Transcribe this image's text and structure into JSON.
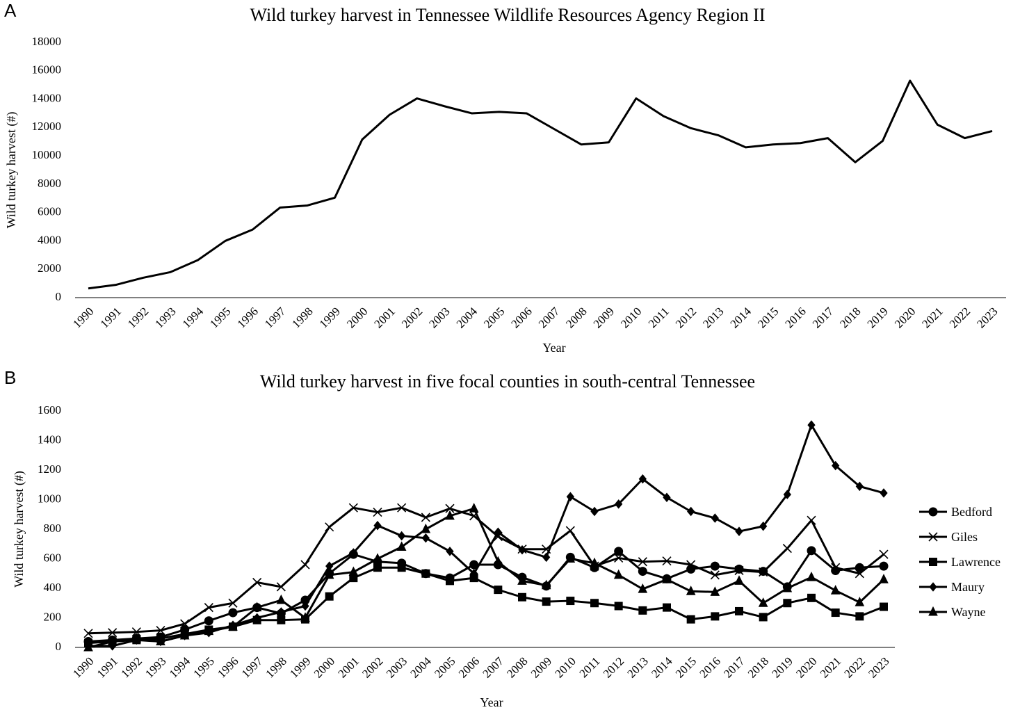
{
  "chart_data": [
    {
      "type": "line",
      "panel_label": "A",
      "title": "Wild turkey harvest in Tennessee Wildlife Resources Agency Region II",
      "xlabel": "Year",
      "ylabel": "Wild turkey harvest (#)",
      "categories": [
        "1990",
        "1991",
        "1992",
        "1993",
        "1994",
        "1995",
        "1996",
        "1997",
        "1998",
        "1999",
        "2000",
        "2001",
        "2002",
        "2003",
        "2004",
        "2005",
        "2006",
        "2007",
        "2008",
        "2009",
        "2010",
        "2011",
        "2012",
        "2013",
        "2014",
        "2015",
        "2016",
        "2017",
        "2018",
        "2019",
        "2020",
        "2021",
        "2022",
        "2023"
      ],
      "series": [
        {
          "name": null,
          "color": "#000000",
          "marker": null,
          "values": [
            650,
            900,
            1400,
            1800,
            2650,
            4000,
            4800,
            6350,
            6500,
            7050,
            11150,
            12900,
            14050,
            13500,
            13000,
            13100,
            13000,
            11900,
            10800,
            10950,
            14050,
            12800,
            11950,
            11450,
            10600,
            10800,
            10900,
            11250,
            9550,
            11050,
            15300,
            12200,
            11250,
            11750
          ]
        }
      ],
      "ylim": [
        0,
        18000
      ],
      "yticks": [
        0,
        2000,
        4000,
        6000,
        8000,
        10000,
        12000,
        14000,
        16000,
        18000
      ],
      "grid": false,
      "legend": null
    },
    {
      "type": "line",
      "panel_label": "B",
      "title": "Wild turkey harvest in five focal counties in south-central Tennessee",
      "xlabel": "Year",
      "ylabel": "Wild turkey harvest (#)",
      "categories": [
        "1990",
        "1991",
        "1992",
        "1993",
        "1994",
        "1995",
        "1996",
        "1997",
        "1998",
        "1999",
        "2000",
        "2001",
        "2002",
        "2003",
        "2004",
        "2005",
        "2006",
        "2007",
        "2008",
        "2009",
        "2010",
        "2011",
        "2012",
        "2013",
        "2014",
        "2015",
        "2016",
        "2017",
        "2018",
        "2019",
        "2020",
        "2021",
        "2022",
        "2023"
      ],
      "series": [
        {
          "name": "Bedford",
          "color": "#000000",
          "marker": "circle",
          "values": [
            40,
            50,
            60,
            70,
            120,
            180,
            235,
            270,
            230,
            320,
            500,
            630,
            580,
            570,
            500,
            470,
            560,
            560,
            475,
            415,
            610,
            540,
            650,
            515,
            465,
            530,
            550,
            530,
            515,
            410,
            655,
            520,
            540,
            550
          ]
        },
        {
          "name": "Giles",
          "color": "#000000",
          "marker": "x",
          "values": [
            95,
            100,
            105,
            115,
            160,
            270,
            300,
            440,
            410,
            560,
            815,
            945,
            915,
            945,
            880,
            940,
            890,
            750,
            665,
            665,
            790,
            550,
            605,
            580,
            585,
            560,
            490,
            520,
            510,
            670,
            860,
            540,
            500,
            630
          ]
        },
        {
          "name": "Lawrence",
          "color": "#000000",
          "marker": "square",
          "values": [
            30,
            40,
            50,
            60,
            90,
            120,
            140,
            185,
            185,
            190,
            345,
            470,
            540,
            540,
            500,
            450,
            470,
            390,
            340,
            310,
            315,
            300,
            280,
            250,
            270,
            190,
            210,
            245,
            205,
            300,
            335,
            235,
            210,
            275
          ]
        },
        {
          "name": "Maury",
          "color": "#000000",
          "marker": "diamond",
          "values": [
            10,
            10,
            50,
            40,
            80,
            100,
            150,
            200,
            240,
            280,
            550,
            640,
            825,
            755,
            740,
            650,
            500,
            780,
            660,
            610,
            1020,
            920,
            970,
            1140,
            1015,
            920,
            875,
            785,
            820,
            1035,
            1505,
            1230,
            1090,
            1045
          ]
        },
        {
          "name": "Wayne",
          "color": "#000000",
          "marker": "triangle",
          "values": [
            0,
            40,
            60,
            40,
            80,
            110,
            140,
            270,
            320,
            200,
            490,
            510,
            600,
            680,
            800,
            890,
            940,
            580,
            450,
            420,
            600,
            570,
            490,
            395,
            460,
            380,
            375,
            450,
            300,
            400,
            475,
            385,
            305,
            460
          ]
        }
      ],
      "ylim": [
        0,
        1600
      ],
      "yticks": [
        0,
        200,
        400,
        600,
        800,
        1000,
        1200,
        1400,
        1600
      ],
      "grid": false,
      "legend": "right"
    }
  ]
}
